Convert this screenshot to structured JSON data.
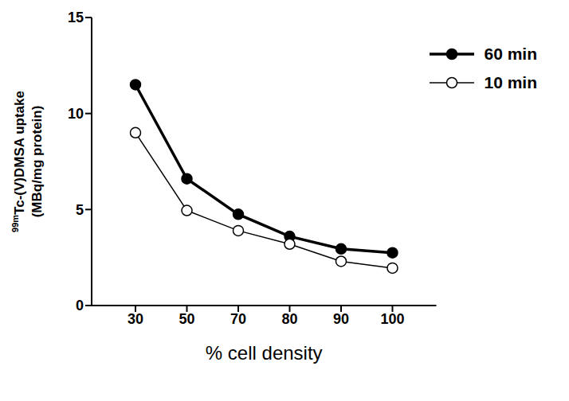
{
  "chart_data": {
    "type": "line",
    "xlabel": "% cell density",
    "ylabel": [
      "99mTc-(V)DMSA uptake",
      "(MBq/mg protein)"
    ],
    "categories": [
      "30",
      "50",
      "70",
      "80",
      "90",
      "100"
    ],
    "series": [
      {
        "name": "60 min",
        "color": "#000000",
        "marker": "filled",
        "line_style": "solid",
        "values": [
          11.5,
          6.6,
          4.75,
          3.6,
          2.95,
          2.75
        ]
      },
      {
        "name": "10 min",
        "color": "#000000",
        "marker": "open",
        "line_style": "solid",
        "values": [
          9.0,
          4.95,
          3.9,
          3.2,
          2.3,
          1.95
        ]
      }
    ],
    "ylim": [
      0,
      15
    ],
    "yticks": [
      0,
      5,
      10,
      15
    ],
    "grid": false,
    "legend": "top-right"
  }
}
